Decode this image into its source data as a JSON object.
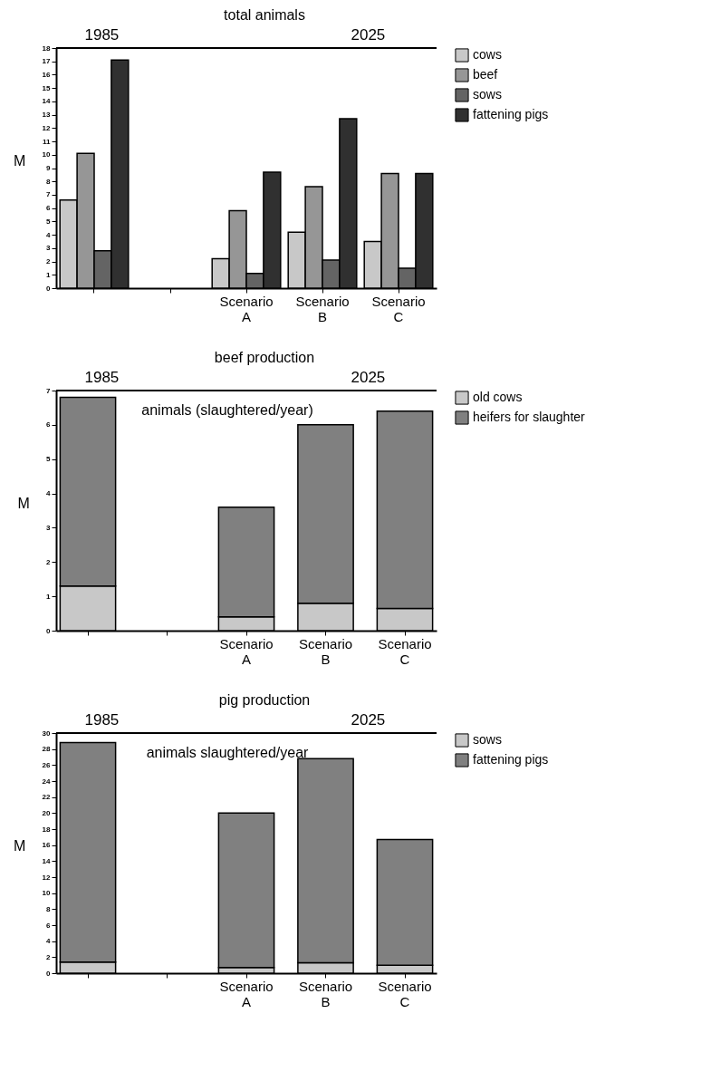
{
  "chart_data": [
    {
      "type": "bar",
      "title": "total animals",
      "annotations": [
        "1985",
        "2025"
      ],
      "ylabel": "M",
      "categories": [
        null,
        null,
        "Scenario A",
        "Scenario B",
        "Scenario C"
      ],
      "ylim": [
        0,
        18
      ],
      "yticks": [
        0,
        1,
        2,
        3,
        4,
        5,
        6,
        7,
        8,
        9,
        10,
        11,
        12,
        13,
        14,
        15,
        16,
        17,
        18
      ],
      "legend": "right",
      "series": [
        {
          "name": "cows",
          "color": "#c8c8c8",
          "values": [
            6.6,
            null,
            2.2,
            4.2,
            3.5
          ]
        },
        {
          "name": "beef",
          "color": "#969696",
          "values": [
            10.1,
            null,
            5.8,
            7.6,
            8.6
          ]
        },
        {
          "name": "sows",
          "color": "#646464",
          "values": [
            2.8,
            null,
            1.1,
            2.1,
            1.5
          ]
        },
        {
          "name": "fattening pigs",
          "color": "#303030",
          "values": [
            17.1,
            null,
            8.7,
            12.7,
            8.6
          ]
        }
      ]
    },
    {
      "type": "bar",
      "title": "beef production",
      "subtitle": "animals (slaughtered/year)",
      "annotations": [
        "1985",
        "2025"
      ],
      "ylabel": "M",
      "categories": [
        null,
        null,
        "Scenario A",
        "Scenario B",
        "Scenario C"
      ],
      "ylim": [
        0,
        7
      ],
      "yticks": [
        0,
        1,
        2,
        3,
        4,
        5,
        6,
        7
      ],
      "legend": "right",
      "stacked": true,
      "series": [
        {
          "name": "old cows",
          "color": "#c8c8c8",
          "values": [
            1.3,
            null,
            0.4,
            0.8,
            0.65
          ]
        },
        {
          "name": "heifers for slaughter",
          "color": "#808080",
          "values": [
            5.5,
            null,
            3.2,
            5.2,
            5.75
          ]
        }
      ]
    },
    {
      "type": "bar",
      "title": "pig production",
      "subtitle": "animals slaughtered/year",
      "annotations": [
        "1985",
        "2025"
      ],
      "ylabel": "M",
      "categories": [
        null,
        null,
        "Scenario A",
        "Scenario B",
        "Scenario C"
      ],
      "ylim": [
        0,
        30
      ],
      "yticks": [
        0,
        2,
        4,
        6,
        8,
        10,
        12,
        14,
        16,
        18,
        20,
        22,
        24,
        26,
        28,
        30
      ],
      "legend": "right",
      "stacked": true,
      "series": [
        {
          "name": "sows",
          "color": "#c8c8c8",
          "values": [
            1.4,
            null,
            0.7,
            1.3,
            1.0
          ]
        },
        {
          "name": "fattening pigs",
          "color": "#808080",
          "values": [
            27.4,
            null,
            19.3,
            25.5,
            15.7
          ]
        }
      ]
    }
  ]
}
